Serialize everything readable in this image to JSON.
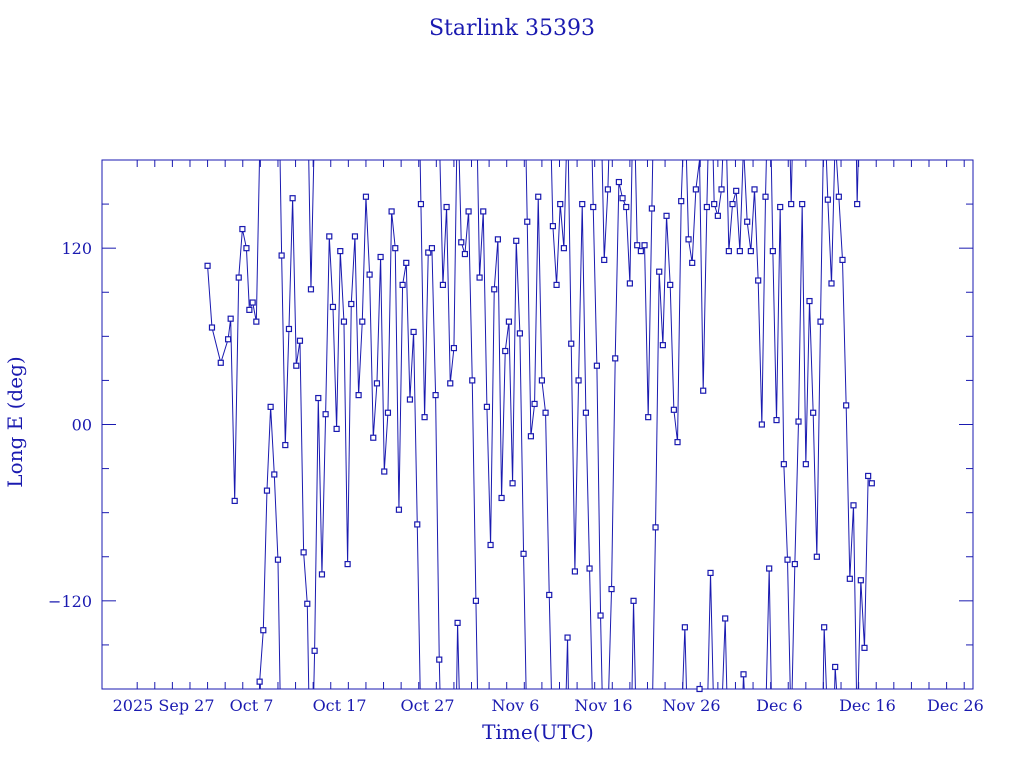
{
  "chart_data": {
    "type": "line",
    "title": "Starlink 35393",
    "xlabel": "Time(UTC)",
    "ylabel": "Long E (deg)",
    "xlim": [
      "2025-09-20",
      "2025-12-28"
    ],
    "ylim": [
      -180,
      180
    ],
    "yticks": [
      -120,
      0,
      120
    ],
    "yticklabels": [
      "−120",
      "00",
      "120"
    ],
    "xticklabels": [
      {
        "date": "2025-09-27",
        "label": "2025 Sep 27"
      },
      {
        "date": "2025-10-07",
        "label": "Oct  7"
      },
      {
        "date": "2025-10-17",
        "label": "Oct 17"
      },
      {
        "date": "2025-10-27",
        "label": "Oct 27"
      },
      {
        "date": "2025-11-06",
        "label": "Nov  6"
      },
      {
        "date": "2025-11-16",
        "label": "Nov 16"
      },
      {
        "date": "2025-11-26",
        "label": "Nov 26"
      },
      {
        "date": "2025-12-06",
        "label": "Dec  6"
      },
      {
        "date": "2025-12-16",
        "label": "Dec 16"
      },
      {
        "date": "2025-12-26",
        "label": "Dec 26"
      }
    ],
    "grid": false,
    "line_color": "#1a1ab0",
    "marker": "square",
    "series": [
      {
        "x": [
          "2025-10-02 00:00",
          "2025-10-02 12:00",
          "2025-10-03 12:00",
          "2025-10-04 08:00",
          "2025-10-04 15:00",
          "2025-10-05 02:00",
          "2025-10-05 13:00",
          "2025-10-05 23:00",
          "2025-10-06 10:00",
          "2025-10-06 18:00",
          "2025-10-07 03:00",
          "2025-10-07 13:00",
          "2025-10-07 22:00",
          "2025-10-08 08:00",
          "2025-10-08 18:00",
          "2025-10-09 04:00",
          "2025-10-09 14:00",
          "2025-10-10 00:00",
          "2025-10-10 10:00",
          "2025-10-10 20:00",
          "2025-10-11 06:00",
          "2025-10-11 16:00",
          "2025-10-12 02:00",
          "2025-10-12 12:00",
          "2025-10-12 22:00",
          "2025-10-13 08:00",
          "2025-10-13 18:00",
          "2025-10-14 04:00",
          "2025-10-14 14:00",
          "2025-10-15 00:00",
          "2025-10-15 10:00",
          "2025-10-15 20:00",
          "2025-10-16 06:00",
          "2025-10-16 16:00",
          "2025-10-17 02:00",
          "2025-10-17 12:00",
          "2025-10-17 22:00",
          "2025-10-18 08:00",
          "2025-10-18 18:00",
          "2025-10-19 04:00",
          "2025-10-19 14:00",
          "2025-10-20 00:00",
          "2025-10-20 10:00",
          "2025-10-20 20:00",
          "2025-10-21 06:00",
          "2025-10-21 16:00",
          "2025-10-22 02:00",
          "2025-10-22 12:00",
          "2025-10-22 22:00",
          "2025-10-23 08:00",
          "2025-10-23 18:00",
          "2025-10-24 04:00",
          "2025-10-24 14:00",
          "2025-10-25 00:00",
          "2025-10-25 10:00",
          "2025-10-25 20:00",
          "2025-10-26 06:00",
          "2025-10-26 16:00",
          "2025-10-27 02:00",
          "2025-10-27 12:00",
          "2025-10-27 22:00",
          "2025-10-28 08:00",
          "2025-10-28 18:00",
          "2025-10-29 04:00",
          "2025-10-29 14:00",
          "2025-10-30 00:00",
          "2025-10-30 10:00",
          "2025-10-30 20:00",
          "2025-10-31 06:00",
          "2025-10-31 16:00",
          "2025-11-01 02:00",
          "2025-11-01 12:00",
          "2025-11-01 22:00",
          "2025-11-02 08:00",
          "2025-11-02 18:00",
          "2025-11-03 04:00",
          "2025-11-03 14:00",
          "2025-11-04 00:00",
          "2025-11-04 10:00",
          "2025-11-04 20:00",
          "2025-11-05 06:00",
          "2025-11-05 16:00",
          "2025-11-06 02:00",
          "2025-11-06 12:00",
          "2025-11-06 22:00",
          "2025-11-07 08:00",
          "2025-11-07 18:00",
          "2025-11-08 04:00",
          "2025-11-08 14:00",
          "2025-11-09 00:00",
          "2025-11-09 10:00",
          "2025-11-09 20:00",
          "2025-11-10 06:00",
          "2025-11-10 16:00",
          "2025-11-11 02:00",
          "2025-11-11 12:00",
          "2025-11-11 22:00",
          "2025-11-12 08:00",
          "2025-11-12 18:00",
          "2025-11-13 04:00",
          "2025-11-13 14:00",
          "2025-11-14 00:00",
          "2025-11-14 10:00",
          "2025-11-14 20:00",
          "2025-11-15 06:00",
          "2025-11-15 16:00",
          "2025-11-16 02:00",
          "2025-11-16 12:00",
          "2025-11-16 22:00",
          "2025-11-17 08:00",
          "2025-11-17 18:00",
          "2025-11-18 04:00",
          "2025-11-18 14:00",
          "2025-11-19 00:00",
          "2025-11-19 10:00",
          "2025-11-19 20:00",
          "2025-11-20 06:00",
          "2025-11-20 16:00",
          "2025-11-21 02:00",
          "2025-11-21 12:00",
          "2025-11-21 22:00",
          "2025-11-22 08:00",
          "2025-11-22 18:00",
          "2025-11-23 04:00",
          "2025-11-23 14:00",
          "2025-11-24 00:00",
          "2025-11-24 10:00",
          "2025-11-24 20:00",
          "2025-11-25 06:00",
          "2025-11-25 16:00",
          "2025-11-26 02:00",
          "2025-11-26 12:00",
          "2025-11-26 22:00",
          "2025-11-27 08:00",
          "2025-11-27 18:00",
          "2025-11-28 04:00",
          "2025-11-28 14:00",
          "2025-11-29 00:00",
          "2025-11-29 10:00",
          "2025-11-29 20:00",
          "2025-11-30 06:00",
          "2025-11-30 16:00",
          "2025-12-01 02:00",
          "2025-12-01 12:00",
          "2025-12-01 22:00",
          "2025-12-02 08:00",
          "2025-12-02 18:00",
          "2025-12-03 04:00",
          "2025-12-03 14:00",
          "2025-12-04 00:00",
          "2025-12-04 10:00",
          "2025-12-04 20:00",
          "2025-12-05 06:00",
          "2025-12-05 16:00",
          "2025-12-06 02:00",
          "2025-12-06 12:00",
          "2025-12-06 22:00",
          "2025-12-07 08:00",
          "2025-12-07 18:00",
          "2025-12-08 04:00",
          "2025-12-08 14:00",
          "2025-12-09 00:00",
          "2025-12-09 10:00",
          "2025-12-09 20:00",
          "2025-12-10 06:00",
          "2025-12-10 16:00",
          "2025-12-11 02:00",
          "2025-12-11 12:00",
          "2025-12-11 22:00",
          "2025-12-12 08:00",
          "2025-12-12 18:00",
          "2025-12-13 04:00",
          "2025-12-13 14:00",
          "2025-12-14 00:00",
          "2025-12-14 10:00",
          "2025-12-14 20:00",
          "2025-12-15 06:00",
          "2025-12-15 16:00",
          "2025-12-16 02:00",
          "2025-12-16 12:00"
        ],
        "y": [
          108,
          66,
          42,
          58,
          72,
          -52,
          100,
          133,
          120,
          78,
          83,
          70,
          -175,
          -140,
          -45,
          12,
          -34,
          -92,
          115,
          -14,
          65,
          154,
          40,
          57,
          -87,
          -122,
          92,
          -154,
          18,
          -102,
          7,
          128,
          80,
          -3,
          118,
          70,
          -95,
          82,
          128,
          20,
          70,
          155,
          102,
          -9,
          28,
          114,
          -32,
          8,
          145,
          120,
          -58,
          95,
          110,
          17,
          63,
          -68,
          150,
          5,
          117,
          120,
          20,
          -160,
          95,
          148,
          28,
          52,
          -135,
          124,
          116,
          145,
          30,
          -120,
          100,
          145,
          12,
          -82,
          92,
          126,
          -50,
          50,
          70,
          -40,
          125,
          62,
          -88,
          138,
          -8,
          14,
          155,
          30,
          8,
          -116,
          135,
          95,
          150,
          120,
          -145,
          55,
          -100,
          30,
          150,
          8,
          -98,
          148,
          40,
          -130,
          112,
          160,
          -112,
          45,
          165,
          154,
          148,
          96,
          -120,
          122,
          118,
          122,
          5,
          147,
          -70,
          104,
          54,
          142,
          95,
          10,
          -12,
          152,
          -138,
          126,
          110,
          160,
          -180,
          23,
          148,
          -101,
          150,
          142,
          160,
          -132,
          118,
          150,
          159,
          118,
          -170,
          138,
          118,
          160,
          98,
          0,
          155,
          -98,
          118,
          3,
          148,
          -27,
          -92,
          150,
          -95,
          2,
          150,
          -27,
          84,
          8,
          -90,
          70,
          -138,
          153,
          96,
          -165,
          155,
          112,
          13,
          -105,
          -55,
          150,
          -106,
          -152,
          -35,
          -40
        ]
      }
    ]
  }
}
